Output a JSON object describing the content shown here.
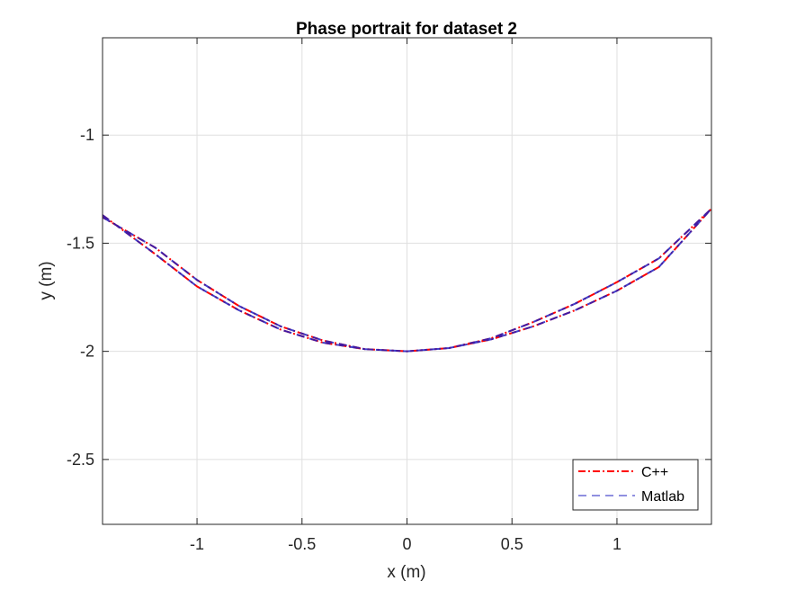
{
  "chart_data": {
    "type": "line",
    "title": "Phase portrait for dataset 2",
    "xlabel": "x (m)",
    "ylabel": "y (m)",
    "xlim": [
      -1.45,
      1.45
    ],
    "ylim": [
      -2.8,
      -0.55
    ],
    "xticks": [
      -1,
      -0.5,
      0,
      0.5,
      1
    ],
    "xtick_labels": [
      "-1",
      "-0.5",
      "0",
      "0.5",
      "1"
    ],
    "yticks": [
      -2.5,
      -2,
      -1.5,
      -1
    ],
    "ytick_labels": [
      "-2.5",
      "-2",
      "-1.5",
      "-1"
    ],
    "grid": true,
    "legend_position": "bottom-right",
    "series": [
      {
        "name": "C++",
        "color": "#ff0000",
        "style": "dash-dot",
        "x": [
          -1.45,
          -1.2,
          -1.0,
          -0.8,
          -0.6,
          -0.4,
          -0.2,
          0.0,
          0.2,
          0.4,
          0.6,
          0.8,
          1.0,
          1.2,
          1.45,
          1.2,
          1.0,
          0.8,
          0.6,
          0.4,
          0.2,
          0.0,
          -0.2,
          -0.4,
          -0.6,
          -0.8,
          -1.0,
          -1.2,
          -1.45
        ],
        "y": [
          -1.37,
          -1.55,
          -1.7,
          -1.81,
          -1.9,
          -1.96,
          -1.99,
          -2.0,
          -1.985,
          -1.94,
          -1.865,
          -1.78,
          -1.68,
          -1.57,
          -1.34,
          -1.61,
          -1.72,
          -1.81,
          -1.885,
          -1.945,
          -1.985,
          -2.0,
          -1.99,
          -1.95,
          -1.885,
          -1.79,
          -1.67,
          -1.52,
          -1.38
        ]
      },
      {
        "name": "Matlab",
        "color": "#2020c0",
        "style": "dashed",
        "x": [
          -1.45,
          -1.2,
          -1.0,
          -0.8,
          -0.6,
          -0.4,
          -0.2,
          0.0,
          0.2,
          0.4,
          0.6,
          0.8,
          1.0,
          1.2,
          1.45,
          1.2,
          1.0,
          0.8,
          0.6,
          0.4,
          0.2,
          0.0,
          -0.2,
          -0.4,
          -0.6,
          -0.8,
          -1.0,
          -1.2,
          -1.45
        ],
        "y": [
          -1.37,
          -1.55,
          -1.7,
          -1.81,
          -1.9,
          -1.96,
          -1.99,
          -2.0,
          -1.985,
          -1.94,
          -1.865,
          -1.78,
          -1.68,
          -1.57,
          -1.34,
          -1.61,
          -1.72,
          -1.81,
          -1.885,
          -1.945,
          -1.985,
          -2.0,
          -1.99,
          -1.95,
          -1.885,
          -1.79,
          -1.67,
          -1.52,
          -1.38
        ]
      }
    ]
  }
}
